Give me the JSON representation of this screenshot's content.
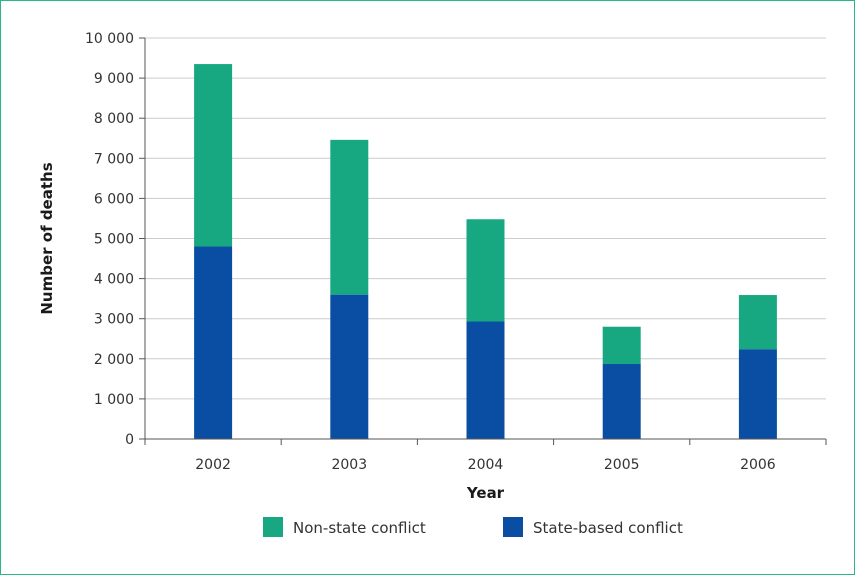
{
  "chart_data": {
    "type": "bar",
    "stacked": true,
    "categories": [
      "2002",
      "2003",
      "2004",
      "2005",
      "2006"
    ],
    "series": [
      {
        "name": "State-based conflict",
        "values": [
          4800,
          3600,
          2930,
          1870,
          2240
        ],
        "color": "#0a4ea3"
      },
      {
        "name": "Non-state conflict",
        "values": [
          4550,
          3860,
          2550,
          930,
          1350
        ],
        "color": "#17a882"
      }
    ],
    "xlabel": "Year",
    "ylabel": "Number of deaths",
    "ylim": [
      0,
      10000
    ],
    "yticks": [
      0,
      1000,
      2000,
      3000,
      4000,
      5000,
      6000,
      7000,
      8000,
      9000,
      10000
    ],
    "ytick_labels": [
      "0",
      "1 000",
      "2 000",
      "3 000",
      "4 000",
      "5 000",
      "6 000",
      "7 000",
      "8 000",
      "9 000",
      "10 000"
    ],
    "grid": true,
    "legend": [
      {
        "label": "Non-state conflict",
        "color": "#17a882"
      },
      {
        "label": "State-based conflict",
        "color": "#0a4ea3"
      }
    ],
    "legend_position": "bottom"
  }
}
